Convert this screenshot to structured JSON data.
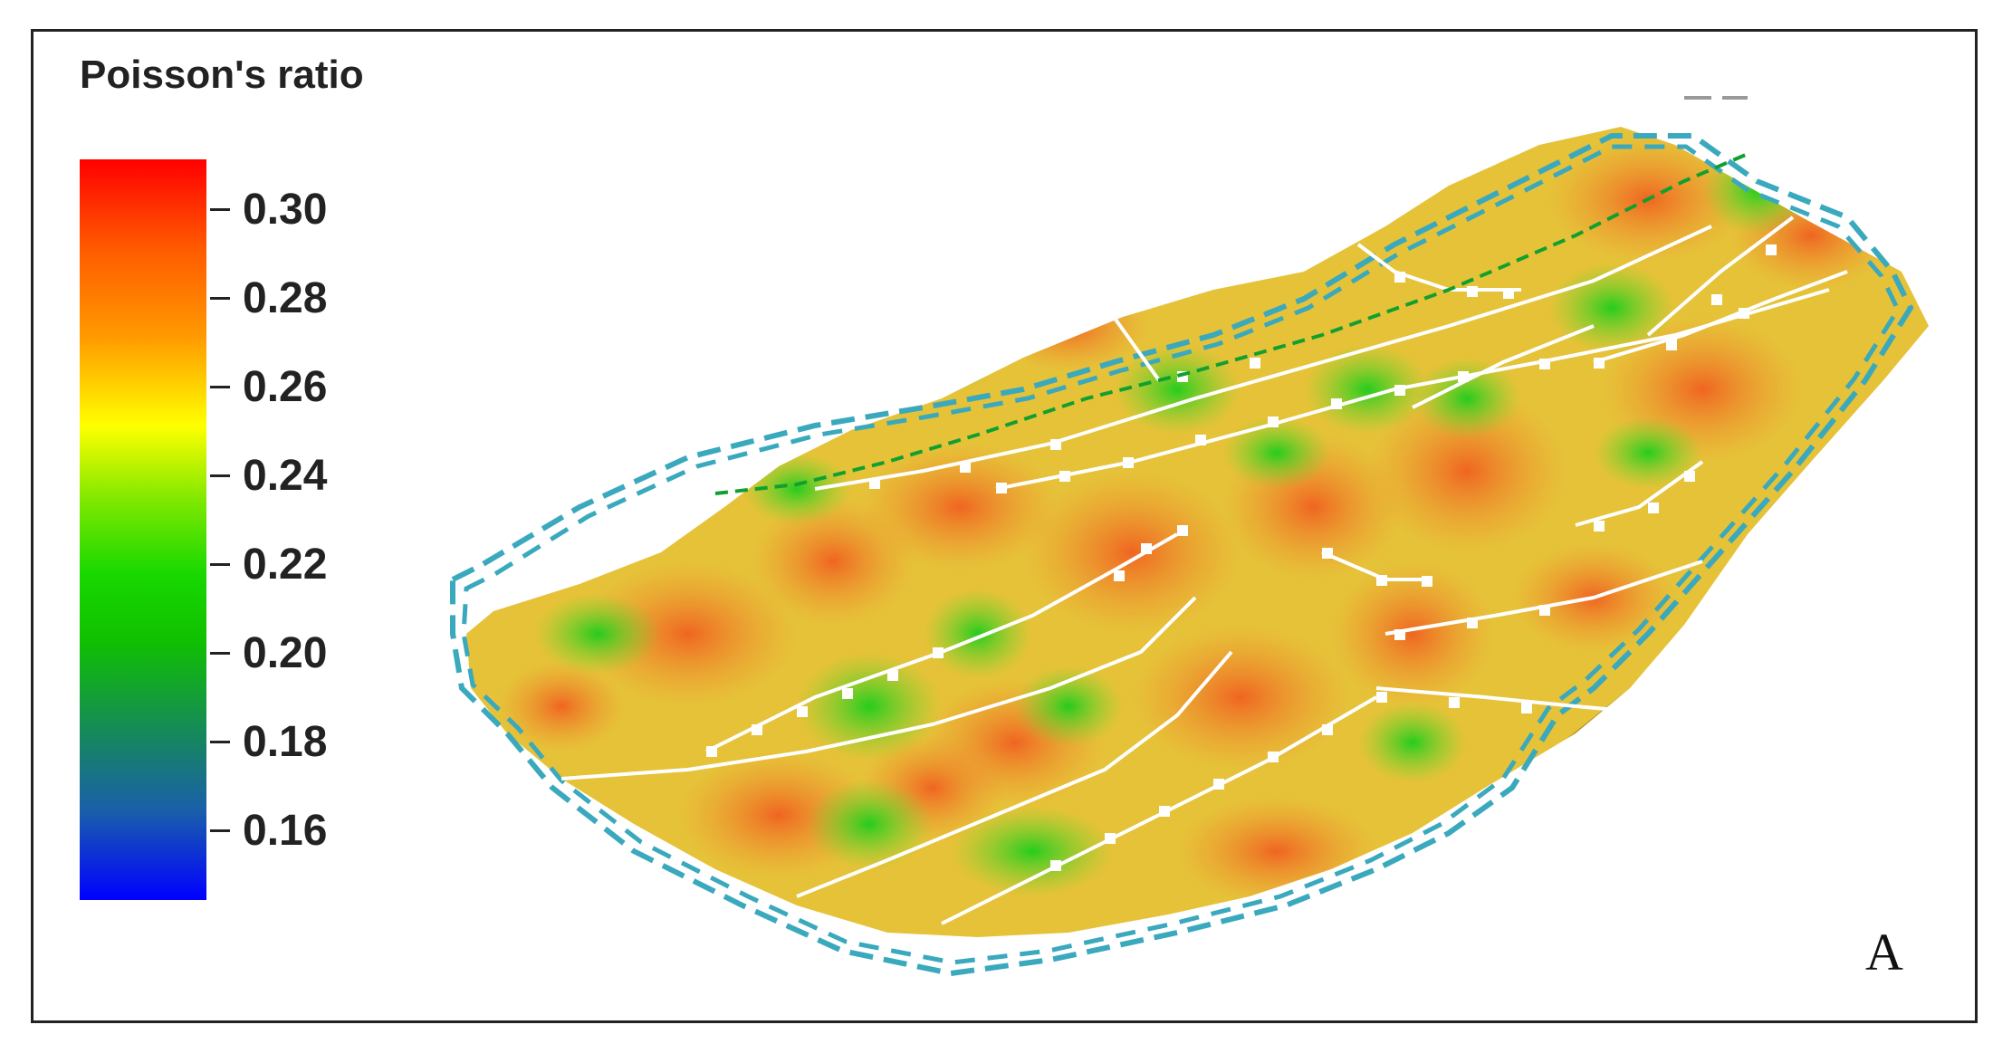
{
  "legend": {
    "title": "Poisson's ratio",
    "ticks": [
      "0.30",
      "0.28",
      "0.26",
      "0.24",
      "0.22",
      "0.20",
      "0.18",
      "0.16"
    ],
    "colormap": [
      "#ff0000",
      "#ff9a00",
      "#ffff00",
      "#18d800",
      "#158f50",
      "#0000ff"
    ]
  },
  "panel_label": "A",
  "colors": {
    "boundary": "#3aa9bd",
    "fault_lines": "#ffffff",
    "high": "#f07020",
    "mid": "#e0d030",
    "low": "#20c820"
  }
}
